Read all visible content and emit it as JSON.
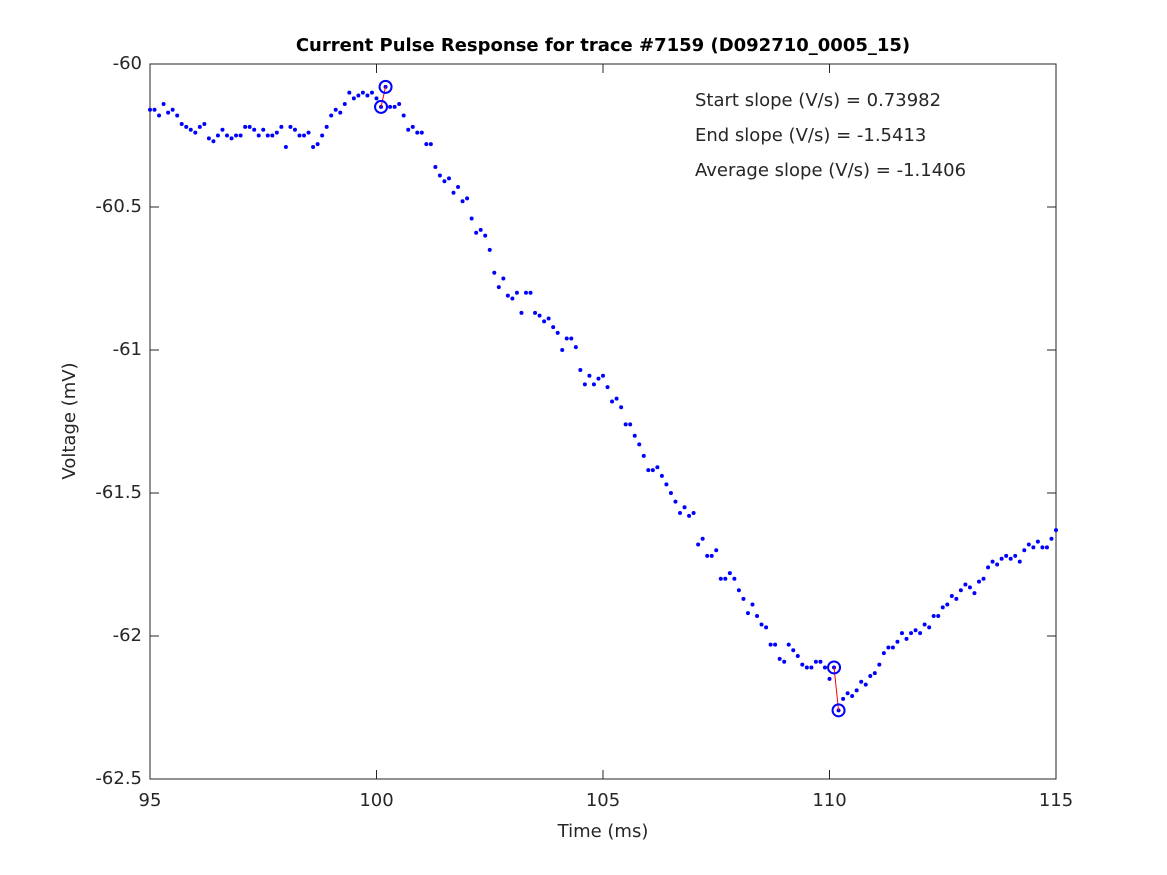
{
  "chart_data": {
    "type": "scatter",
    "title": "Current Pulse Response for trace #7159 (D092710_0005_15)",
    "xlabel": "Time (ms)",
    "ylabel": "Voltage (mV)",
    "annotations": [
      "Start slope (V/s) = 0.73982",
      "End slope (V/s) = -1.5413",
      "Average slope (V/s) = -1.1406"
    ],
    "xlim": [
      95,
      115
    ],
    "xticks": [
      95,
      100,
      105,
      110,
      115
    ],
    "ylim": [
      -62.5,
      -60
    ],
    "yticks": [
      -60,
      -60.5,
      -61,
      -61.5,
      -62,
      -62.5
    ],
    "color": "#0000ff",
    "fit_color": "#ff0000",
    "x": [
      95,
      95.1,
      95.2,
      95.3,
      95.4,
      95.5,
      95.6,
      95.7,
      95.8,
      95.9,
      96,
      96.1,
      96.2,
      96.3,
      96.4,
      96.5,
      96.6,
      96.7,
      96.8,
      96.9,
      97,
      97.1,
      97.2,
      97.3,
      97.4,
      97.5,
      97.6,
      97.7,
      97.8,
      97.9,
      98,
      98.1,
      98.2,
      98.3,
      98.4,
      98.5,
      98.6,
      98.7,
      98.8,
      98.9,
      99,
      99.1,
      99.2,
      99.3,
      99.4,
      99.5,
      99.6,
      99.7,
      99.8,
      99.9,
      100,
      100.1,
      100.2,
      100.3,
      100.4,
      100.5,
      100.6,
      100.7,
      100.8,
      100.9,
      101,
      101.1,
      101.2,
      101.3,
      101.4,
      101.5,
      101.6,
      101.7,
      101.8,
      101.9,
      102,
      102.1,
      102.2,
      102.3,
      102.4,
      102.5,
      102.6,
      102.7,
      102.8,
      102.9,
      103,
      103.1,
      103.2,
      103.3,
      103.4,
      103.5,
      103.6,
      103.7,
      103.8,
      103.9,
      104,
      104.1,
      104.2,
      104.3,
      104.4,
      104.5,
      104.6,
      104.7,
      104.8,
      104.9,
      105,
      105.1,
      105.2,
      105.3,
      105.4,
      105.5,
      105.6,
      105.7,
      105.8,
      105.9,
      106,
      106.1,
      106.2,
      106.3,
      106.4,
      106.5,
      106.6,
      106.7,
      106.8,
      106.9,
      107,
      107.1,
      107.2,
      107.3,
      107.4,
      107.5,
      107.6,
      107.7,
      107.8,
      107.9,
      108,
      108.1,
      108.2,
      108.3,
      108.4,
      108.5,
      108.6,
      108.7,
      108.8,
      108.9,
      109,
      109.1,
      109.2,
      109.3,
      109.4,
      109.5,
      109.6,
      109.7,
      109.8,
      109.9,
      110,
      110.1,
      110.2,
      110.3,
      110.4,
      110.5,
      110.6,
      110.7,
      110.8,
      110.9,
      111,
      111.1,
      111.2,
      111.3,
      111.4,
      111.5,
      111.6,
      111.7,
      111.8,
      111.9,
      112,
      112.1,
      112.2,
      112.3,
      112.4,
      112.5,
      112.6,
      112.7,
      112.8,
      112.9,
      113,
      113.1,
      113.2,
      113.3,
      113.4,
      113.5,
      113.6,
      113.7,
      113.8,
      113.9,
      114,
      114.1,
      114.2,
      114.3,
      114.4,
      114.5,
      114.6,
      114.7,
      114.8,
      114.9,
      115
    ],
    "values": [
      -60.16,
      -60.16,
      -60.18,
      -60.14,
      -60.17,
      -60.16,
      -60.18,
      -60.21,
      -60.22,
      -60.23,
      -60.24,
      -60.22,
      -60.21,
      -60.26,
      -60.27,
      -60.25,
      -60.23,
      -60.25,
      -60.26,
      -60.25,
      -60.25,
      -60.22,
      -60.22,
      -60.23,
      -60.25,
      -60.23,
      -60.25,
      -60.25,
      -60.24,
      -60.22,
      -60.29,
      -60.22,
      -60.23,
      -60.25,
      -60.25,
      -60.24,
      -60.29,
      -60.28,
      -60.25,
      -60.22,
      -60.18,
      -60.16,
      -60.17,
      -60.14,
      -60.1,
      -60.12,
      -60.11,
      -60.1,
      -60.11,
      -60.1,
      -60.12,
      -60.15,
      -60.08,
      -60.15,
      -60.15,
      -60.14,
      -60.18,
      -60.23,
      -60.22,
      -60.24,
      -60.24,
      -60.28,
      -60.28,
      -60.36,
      -60.39,
      -60.41,
      -60.4,
      -60.45,
      -60.43,
      -60.48,
      -60.47,
      -60.54,
      -60.59,
      -60.58,
      -60.6,
      -60.65,
      -60.73,
      -60.78,
      -60.75,
      -60.81,
      -60.82,
      -60.8,
      -60.87,
      -60.8,
      -60.8,
      -60.87,
      -60.88,
      -60.9,
      -60.89,
      -60.92,
      -60.94,
      -61,
      -60.96,
      -60.96,
      -60.99,
      -61.07,
      -61.12,
      -61.09,
      -61.12,
      -61.1,
      -61.09,
      -61.13,
      -61.18,
      -61.17,
      -61.2,
      -61.26,
      -61.26,
      -61.3,
      -61.33,
      -61.37,
      -61.42,
      -61.42,
      -61.41,
      -61.44,
      -61.47,
      -61.5,
      -61.53,
      -61.57,
      -61.55,
      -61.58,
      -61.57,
      -61.68,
      -61.66,
      -61.72,
      -61.72,
      -61.7,
      -61.8,
      -61.8,
      -61.78,
      -61.8,
      -61.84,
      -61.87,
      -61.92,
      -61.89,
      -61.93,
      -61.96,
      -61.97,
      -62.03,
      -62.03,
      -62.08,
      -62.09,
      -62.03,
      -62.05,
      -62.07,
      -62.1,
      -62.11,
      -62.11,
      -62.09,
      -62.09,
      -62.11,
      -62.15,
      -62.11,
      -62.26,
      -62.22,
      -62.2,
      -62.21,
      -62.19,
      -62.16,
      -62.17,
      -62.14,
      -62.13,
      -62.1,
      -62.06,
      -62.04,
      -62.04,
      -62.02,
      -61.99,
      -62.01,
      -61.99,
      -61.98,
      -61.99,
      -61.96,
      -61.97,
      -61.93,
      -61.93,
      -61.9,
      -61.89,
      -61.86,
      -61.87,
      -61.84,
      -61.82,
      -61.83,
      -61.85,
      -61.81,
      -61.8,
      -61.76,
      -61.74,
      -61.75,
      -61.73,
      -61.72,
      -61.73,
      -61.72,
      -61.74,
      -61.7,
      -61.68,
      -61.69,
      -61.67,
      -61.69,
      -61.69,
      -61.66,
      -61.63
    ],
    "fits": [
      {
        "x": [
          100.1,
          100.2
        ],
        "values": [
          -60.15,
          -60.08
        ]
      },
      {
        "x": [
          110.1,
          110.2
        ],
        "values": [
          -62.11,
          -62.26
        ]
      }
    ]
  }
}
